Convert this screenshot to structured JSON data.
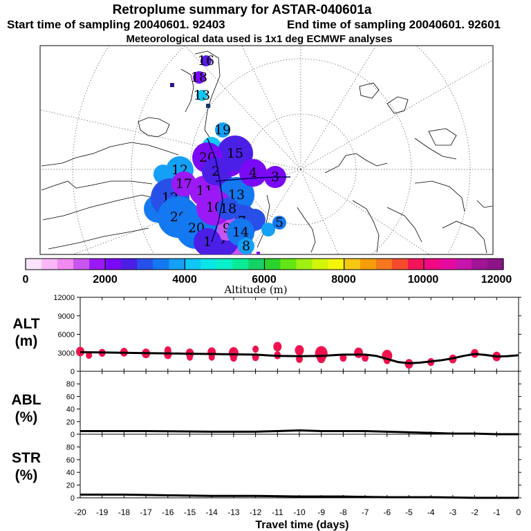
{
  "header": {
    "title": "Retroplume summary for ASTAR-040601a",
    "start": "Start time of sampling 20040601. 92403",
    "end": "End time of sampling 20040601. 92601",
    "met": "Meteorological data used is 1x1 deg ECMWF analyses"
  },
  "colorbar": {
    "label": "Altitude (m)",
    "ticks": [
      "0",
      "2000",
      "4000",
      "6000",
      "8000",
      "10000",
      "12000"
    ],
    "colors": [
      "#fde3fd",
      "#f8b8f8",
      "#f08af0",
      "#c855f0",
      "#9b19f5",
      "#7a0af5",
      "#4b1fe6",
      "#2850e8",
      "#1478f0",
      "#14a0f5",
      "#0fc8f5",
      "#0ae6e6",
      "#0af0c8",
      "#0aeb96",
      "#14d264",
      "#2cd22c",
      "#64e614",
      "#a0f014",
      "#d2f50a",
      "#f5f50a",
      "#f5c814",
      "#f59e0a",
      "#f5781e",
      "#f54b2d",
      "#f5145a",
      "#f00a82",
      "#e60aa0",
      "#c814aa",
      "#a01496",
      "#8c1487"
    ]
  },
  "map": {
    "plume_numbers": [
      "16",
      "18",
      "13",
      "19",
      "12",
      "15",
      "20",
      "12",
      "20",
      "11",
      "13",
      "7",
      "4",
      "3",
      "6",
      "9",
      "20",
      "10",
      "18",
      "17",
      "2",
      "1",
      "14",
      "5",
      "8"
    ]
  },
  "chart_data": [
    {
      "type": "scatter+line",
      "title": "ALT",
      "panel_label": [
        "ALT",
        "(m)"
      ],
      "ylabel": "Altitude (m)",
      "xlabel": "Travel time (days)",
      "x_ticks": [
        "-20",
        "-19",
        "-18",
        "-17",
        "-16",
        "-15",
        "-14",
        "-13",
        "-12",
        "-11",
        "-10",
        "-9",
        "-8",
        "-7",
        "-6",
        "-5",
        "-4",
        "-3",
        "-2",
        "-1",
        "0"
      ],
      "xlim": [
        -20,
        0
      ],
      "ylim": [
        0,
        12000
      ],
      "y_ticks": [
        "0",
        "3000",
        "6000",
        "9000",
        "12000"
      ],
      "line": {
        "x": [
          -20,
          -19,
          -18,
          -17,
          -16,
          -15,
          -14,
          -13,
          -12,
          -11,
          -10,
          -9,
          -8,
          -7,
          -6.5,
          -6,
          -5.5,
          -5,
          -4.5,
          -4,
          -3.5,
          -3,
          -2.5,
          -2,
          -1.5,
          -1,
          -0.5,
          0
        ],
        "y": [
          3100,
          3050,
          3000,
          2950,
          2900,
          2850,
          2800,
          2750,
          2700,
          2500,
          2450,
          2500,
          2700,
          2700,
          2500,
          2000,
          1500,
          1300,
          1400,
          1600,
          1800,
          2100,
          2500,
          2800,
          2650,
          2400,
          2450,
          2600
        ]
      },
      "points": [
        {
          "x": -20,
          "y": 3200,
          "s": 1.0
        },
        {
          "x": -19.6,
          "y": 2600,
          "s": 0.7
        },
        {
          "x": -19,
          "y": 3000,
          "s": 0.8
        },
        {
          "x": -18,
          "y": 3100,
          "s": 0.9
        },
        {
          "x": -17,
          "y": 2900,
          "s": 1.0
        },
        {
          "x": -16,
          "y": 2700,
          "s": 0.9
        },
        {
          "x": -16,
          "y": 3400,
          "s": 0.8
        },
        {
          "x": -15,
          "y": 2900,
          "s": 1.0
        },
        {
          "x": -15,
          "y": 2300,
          "s": 0.7
        },
        {
          "x": -14,
          "y": 3100,
          "s": 1.0
        },
        {
          "x": -14,
          "y": 2300,
          "s": 0.7
        },
        {
          "x": -13,
          "y": 3000,
          "s": 1.2
        },
        {
          "x": -13,
          "y": 2200,
          "s": 0.8
        },
        {
          "x": -12,
          "y": 3600,
          "s": 0.7
        },
        {
          "x": -12,
          "y": 2300,
          "s": 0.8
        },
        {
          "x": -11,
          "y": 4000,
          "s": 1.0
        },
        {
          "x": -11,
          "y": 2600,
          "s": 0.8
        },
        {
          "x": -10,
          "y": 3400,
          "s": 1.1
        },
        {
          "x": -10,
          "y": 2000,
          "s": 0.8
        },
        {
          "x": -9,
          "y": 2900,
          "s": 1.6
        },
        {
          "x": -9,
          "y": 2100,
          "s": 1.0
        },
        {
          "x": -8,
          "y": 2200,
          "s": 0.8
        },
        {
          "x": -7.3,
          "y": 3000,
          "s": 1.1
        },
        {
          "x": -7,
          "y": 2200,
          "s": 0.8
        },
        {
          "x": -6,
          "y": 2500,
          "s": 1.3
        },
        {
          "x": -6,
          "y": 1800,
          "s": 0.8
        },
        {
          "x": -5,
          "y": 1200,
          "s": 1.0
        },
        {
          "x": -4,
          "y": 1500,
          "s": 0.8
        },
        {
          "x": -3,
          "y": 2000,
          "s": 0.9
        },
        {
          "x": -2,
          "y": 2900,
          "s": 0.9
        },
        {
          "x": -1,
          "y": 2400,
          "s": 1.0
        }
      ],
      "point_color": "#f0124e"
    },
    {
      "type": "line",
      "title": "ABL",
      "panel_label": [
        "ABL",
        "(%)"
      ],
      "ylabel": "ABL (%)",
      "xlim": [
        -20,
        0
      ],
      "ylim": [
        0,
        100
      ],
      "y_ticks": [
        "0",
        "20",
        "40",
        "60",
        "80"
      ],
      "x": [
        -20,
        -17,
        -14,
        -12,
        -11,
        -10,
        -9,
        -8,
        -7,
        -6,
        -5,
        -4,
        -3,
        -2,
        -1,
        0
      ],
      "y": [
        5,
        5,
        4,
        4,
        5,
        6,
        5,
        5,
        5,
        4,
        3,
        2,
        1,
        1,
        0,
        0
      ]
    },
    {
      "type": "line",
      "title": "STR",
      "panel_label": [
        "STR",
        "(%)"
      ],
      "ylabel": "STR (%)",
      "xlim": [
        -20,
        0
      ],
      "ylim": [
        0,
        100
      ],
      "y_ticks": [
        "0",
        "20",
        "40",
        "60",
        "80"
      ],
      "x": [
        -20,
        -18,
        -16,
        -14,
        -12,
        -10,
        -8,
        -6,
        -4,
        -2,
        0
      ],
      "y": [
        5,
        5,
        4,
        3,
        3,
        2,
        2,
        1,
        1,
        0,
        0
      ]
    }
  ]
}
